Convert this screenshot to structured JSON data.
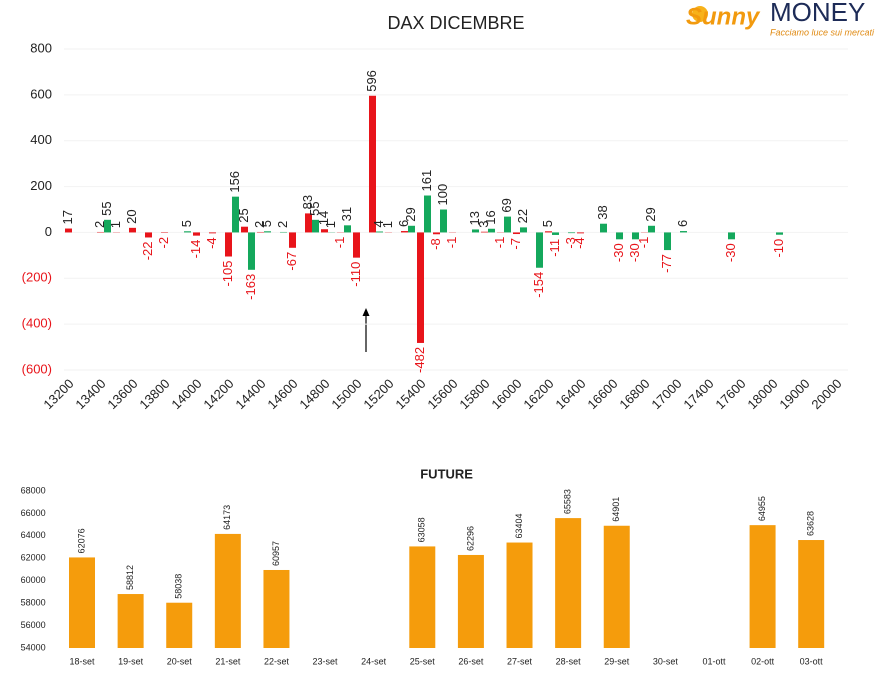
{
  "logo": {
    "brand": "Sunny",
    "name": "MONEY",
    "tagline": "Facciamo luce sui mercati"
  },
  "chart_data": [
    {
      "type": "bar",
      "title": "DAX DICEMBRE",
      "categories": [
        "13200",
        null,
        "13400",
        null,
        "13600",
        null,
        "13800",
        null,
        "14000",
        null,
        "14200",
        null,
        "14400",
        null,
        "14600",
        null,
        "14800",
        null,
        "15000",
        null,
        "15200",
        null,
        "15400",
        null,
        "15600",
        null,
        "15800",
        null,
        "16000",
        null,
        "16200",
        null,
        "16400",
        null,
        "16600",
        null,
        "16800",
        null,
        "17000",
        null,
        "17400",
        null,
        "17600",
        null,
        "18000",
        null,
        "19000",
        null,
        "20000"
      ],
      "series": [
        {
          "color": "#e8141a",
          "values": [
            17,
            null,
            2,
            1,
            20,
            -22,
            -2,
            null,
            -14,
            -4,
            -105,
            25,
            2,
            null,
            -67,
            83,
            14,
            -1,
            -110,
            596,
            1,
            6,
            -482,
            -8,
            -1,
            null,
            3,
            -1,
            -7,
            null,
            5,
            null,
            -4,
            null,
            null,
            null,
            -1,
            null,
            null,
            null,
            null,
            null,
            null,
            null,
            null,
            null,
            null,
            null,
            null
          ]
        },
        {
          "color": "#14a85c",
          "values": [
            null,
            null,
            55,
            null,
            null,
            null,
            null,
            5,
            null,
            null,
            156,
            -163,
            5,
            2,
            null,
            55,
            1,
            31,
            null,
            4,
            null,
            29,
            161,
            100,
            null,
            13,
            16,
            69,
            22,
            -154,
            -11,
            -3,
            null,
            38,
            -30,
            -30,
            29,
            -77,
            6,
            null,
            null,
            -30,
            null,
            null,
            -10,
            null,
            null,
            null,
            null
          ]
        }
      ],
      "ylim": [
        -600,
        800
      ],
      "yticks": [
        {
          "value": -600,
          "label": "(600)"
        },
        {
          "value": -400,
          "label": "(400)"
        },
        {
          "value": -200,
          "label": "(200)"
        },
        0,
        200,
        400,
        600,
        800
      ],
      "grid": true
    },
    {
      "type": "bar",
      "title": "FUTURE",
      "categories": [
        "18-set",
        "19-set",
        "20-set",
        "21-set",
        "22-set",
        "23-set",
        "24-set",
        "25-set",
        "26-set",
        "27-set",
        "28-set",
        "29-set",
        "30-set",
        "01-ott",
        "02-ott",
        "03-ott"
      ],
      "values": [
        62076,
        58812,
        58038,
        64173,
        60957,
        null,
        null,
        63058,
        62296,
        63404,
        65583,
        64901,
        null,
        null,
        64955,
        63628
      ],
      "color": "#f59c0c",
      "ylim": [
        54000,
        68000
      ],
      "yticks": [
        54000,
        56000,
        58000,
        60000,
        62000,
        64000,
        66000,
        68000
      ],
      "grid": false
    }
  ]
}
